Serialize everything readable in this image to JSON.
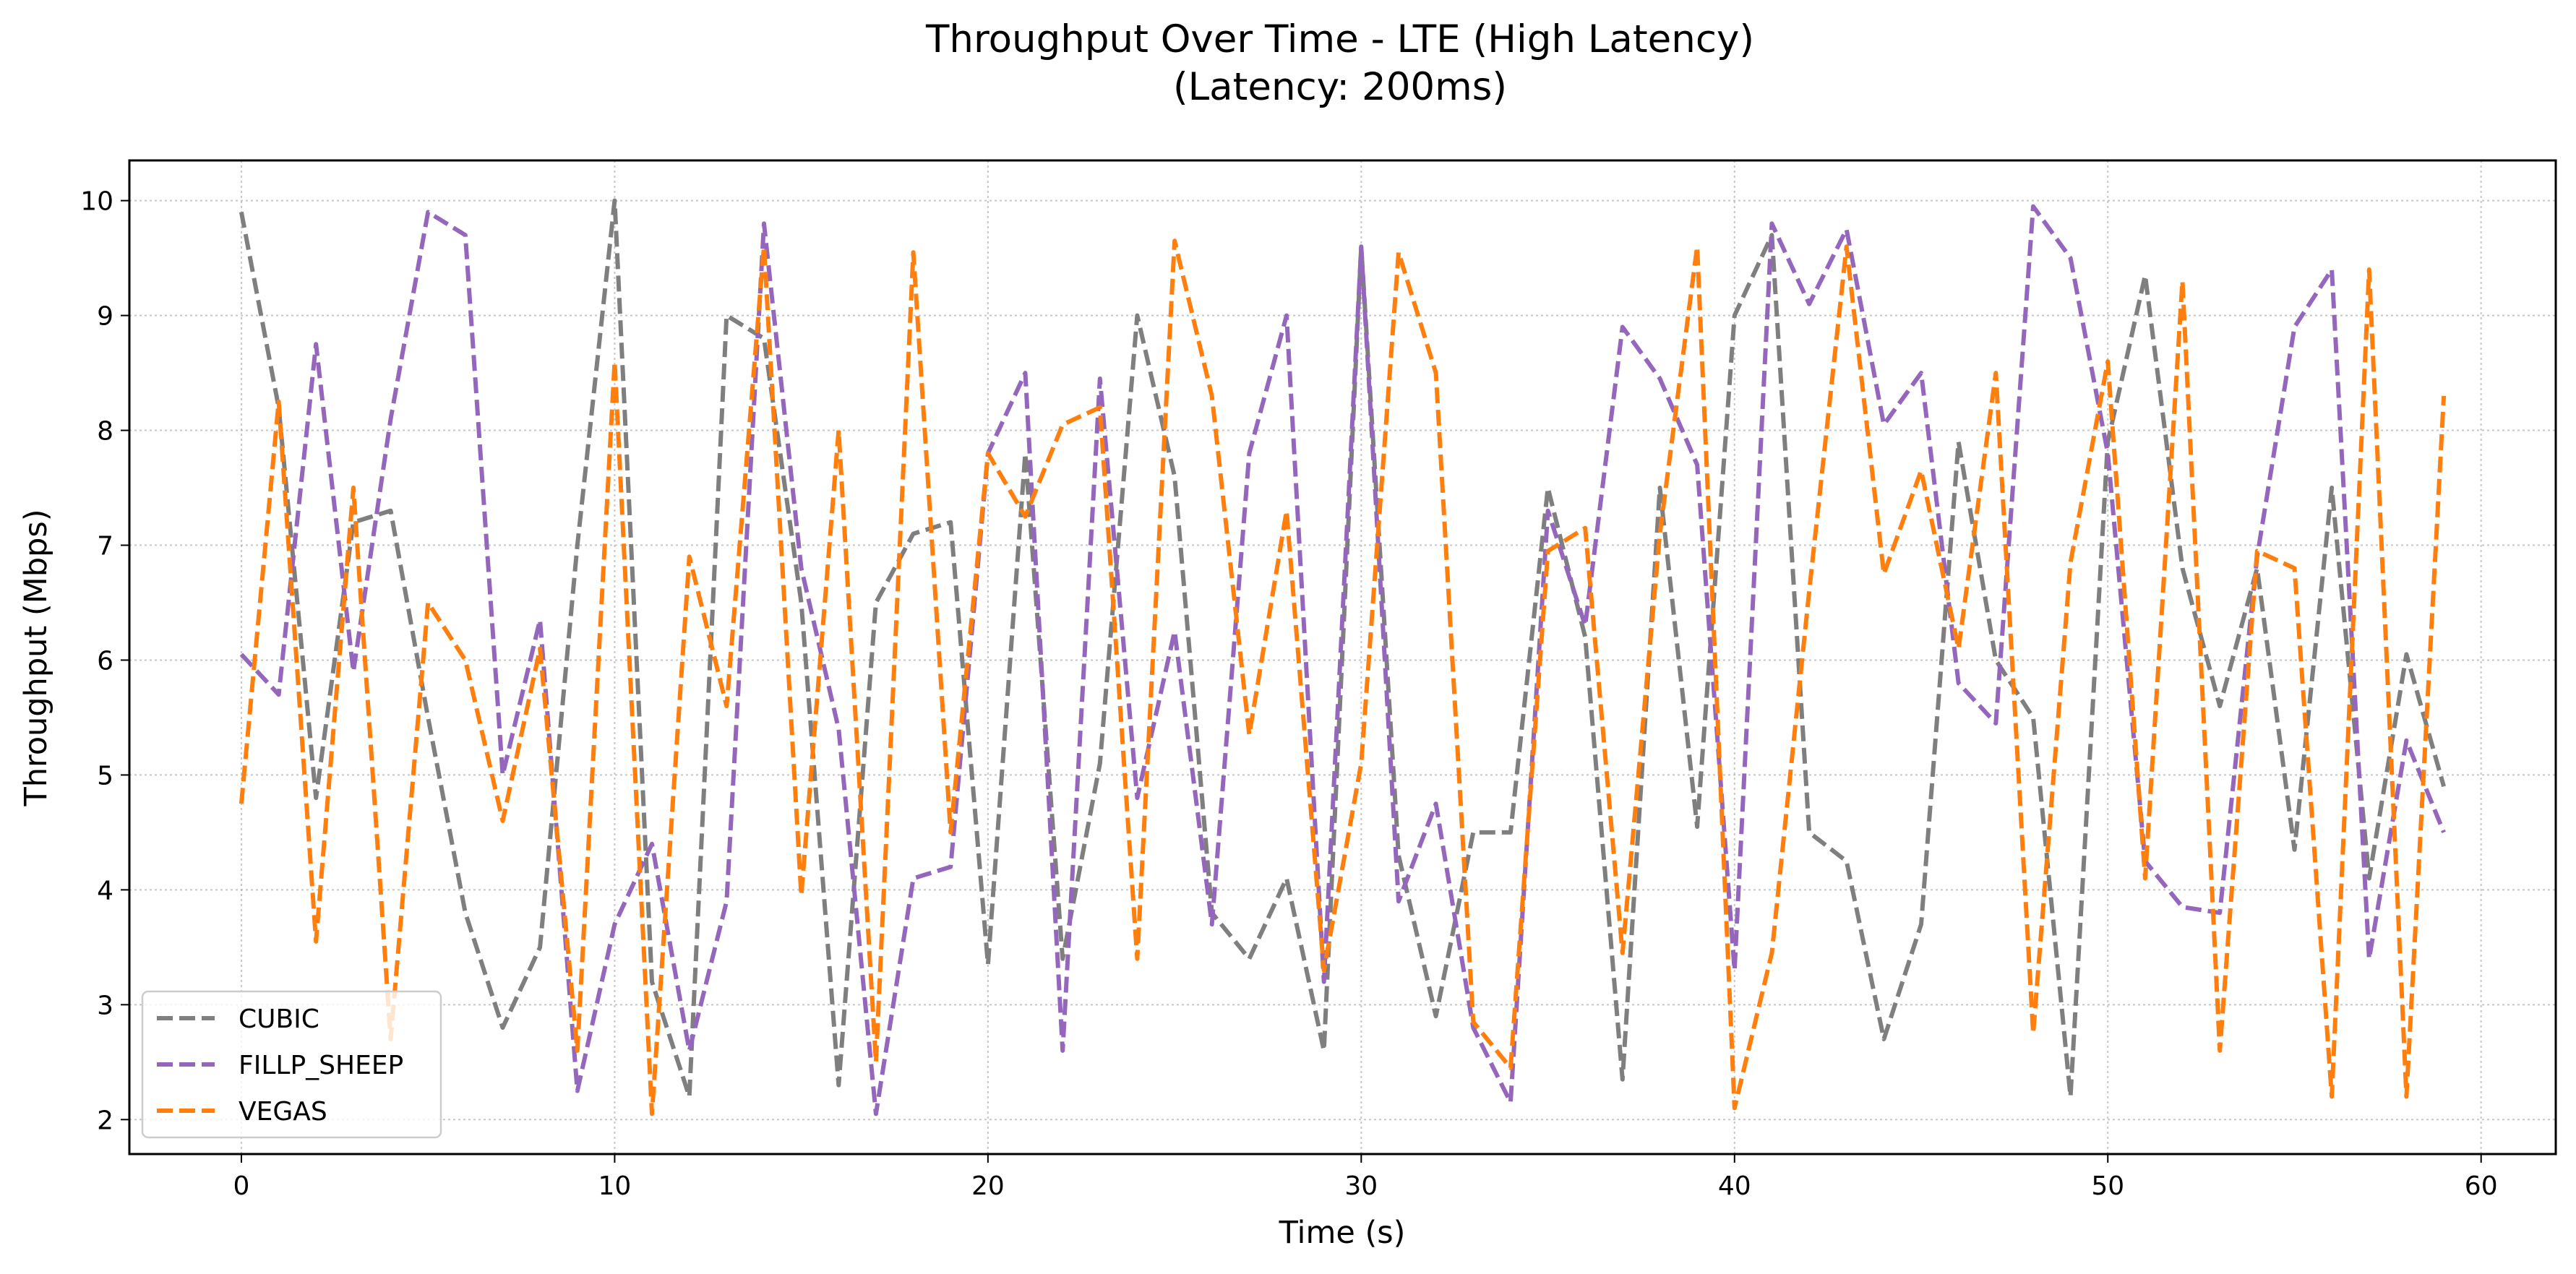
{
  "chart_data": {
    "type": "line",
    "title": "Throughput Over Time - LTE (High Latency)",
    "subtitle": "(Latency: 200ms)",
    "xlabel": "Time (s)",
    "ylabel": "Throughput (Mbps)",
    "xlim": [
      -3,
      62
    ],
    "ylim": [
      1.7,
      10.35
    ],
    "xticks": [
      0,
      10,
      20,
      30,
      40,
      50,
      60
    ],
    "yticks": [
      2,
      3,
      4,
      5,
      6,
      7,
      8,
      9,
      10
    ],
    "grid": true,
    "legend_position": "lower-left",
    "x": [
      0,
      1,
      2,
      3,
      4,
      5,
      6,
      7,
      8,
      9,
      10,
      11,
      12,
      13,
      14,
      15,
      16,
      17,
      18,
      19,
      20,
      21,
      22,
      23,
      24,
      25,
      26,
      27,
      28,
      29,
      30,
      31,
      32,
      33,
      34,
      35,
      36,
      37,
      38,
      39,
      40,
      41,
      42,
      43,
      44,
      45,
      46,
      47,
      48,
      49,
      50,
      51,
      52,
      53,
      54,
      55,
      56,
      57,
      58,
      59
    ],
    "series": [
      {
        "name": "CUBIC",
        "color": "#7f7f7f",
        "values": [
          9.9,
          8.2,
          4.8,
          7.2,
          7.3,
          5.5,
          3.8,
          2.8,
          3.5,
          7.0,
          10.0,
          3.2,
          2.2,
          9.0,
          8.8,
          6.5,
          2.3,
          6.5,
          7.1,
          7.2,
          3.35,
          7.8,
          3.4,
          5.1,
          9.0,
          7.6,
          3.8,
          3.4,
          4.1,
          2.6,
          9.6,
          4.3,
          2.9,
          4.5,
          4.5,
          7.5,
          6.2,
          2.35,
          7.5,
          4.55,
          9.0,
          9.7,
          4.5,
          4.25,
          2.7,
          3.7,
          7.9,
          6.0,
          5.5,
          2.2,
          7.9,
          9.35,
          6.8,
          5.6,
          6.8,
          4.35,
          7.5,
          4.1,
          6.05,
          4.9
        ]
      },
      {
        "name": "FILLP_SHEEP",
        "color": "#9467bd",
        "values": [
          6.05,
          5.7,
          8.75,
          5.9,
          8.1,
          9.9,
          9.7,
          5.0,
          6.35,
          2.25,
          3.7,
          4.4,
          2.6,
          3.9,
          9.8,
          6.8,
          5.4,
          2.05,
          4.1,
          4.2,
          7.8,
          8.5,
          2.6,
          8.45,
          4.8,
          6.25,
          3.7,
          7.8,
          9.0,
          3.2,
          9.6,
          3.9,
          4.75,
          2.8,
          2.15,
          7.3,
          6.3,
          8.9,
          8.45,
          7.7,
          3.3,
          9.8,
          9.1,
          9.75,
          8.05,
          8.5,
          5.8,
          5.45,
          9.95,
          9.5,
          7.8,
          4.25,
          3.85,
          3.8,
          6.9,
          8.9,
          9.4,
          3.4,
          5.3,
          4.5
        ]
      },
      {
        "name": "VEGAS",
        "color": "#ff7f0e",
        "values": [
          4.75,
          8.25,
          3.55,
          7.5,
          2.7,
          6.5,
          6.0,
          4.6,
          6.1,
          2.6,
          8.6,
          2.05,
          6.9,
          5.6,
          9.6,
          3.95,
          8.0,
          2.5,
          9.55,
          4.5,
          7.8,
          7.25,
          8.05,
          8.2,
          3.4,
          9.65,
          8.3,
          5.35,
          7.3,
          3.3,
          5.1,
          9.55,
          8.5,
          2.85,
          2.45,
          6.95,
          7.15,
          3.45,
          7.1,
          9.6,
          2.1,
          3.45,
          6.6,
          9.6,
          6.75,
          7.65,
          6.1,
          8.5,
          2.75,
          6.85,
          8.6,
          4.1,
          9.3,
          2.6,
          6.95,
          6.8,
          2.2,
          9.4,
          2.2,
          8.3
        ]
      }
    ]
  }
}
